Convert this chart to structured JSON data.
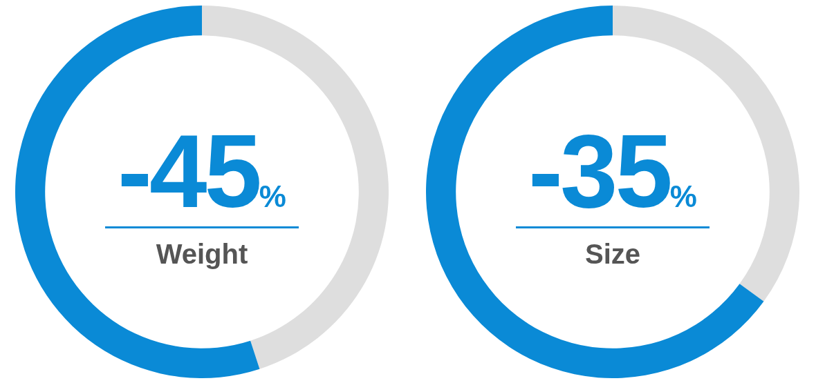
{
  "chart_data": [
    {
      "type": "donut",
      "categories": [
        null,
        null
      ],
      "values": [
        45,
        55
      ],
      "colors": [
        "#dedede",
        "#0a8ad6"
      ],
      "annotations": [
        "-45%"
      ],
      "title": "Weight",
      "legend": false
    },
    {
      "type": "donut",
      "categories": [
        null,
        null
      ],
      "values": [
        35,
        65
      ],
      "colors": [
        "#dedede",
        "#0a8ad6"
      ],
      "annotations": [
        "-35%"
      ],
      "title": "Size",
      "legend": false
    }
  ]
}
